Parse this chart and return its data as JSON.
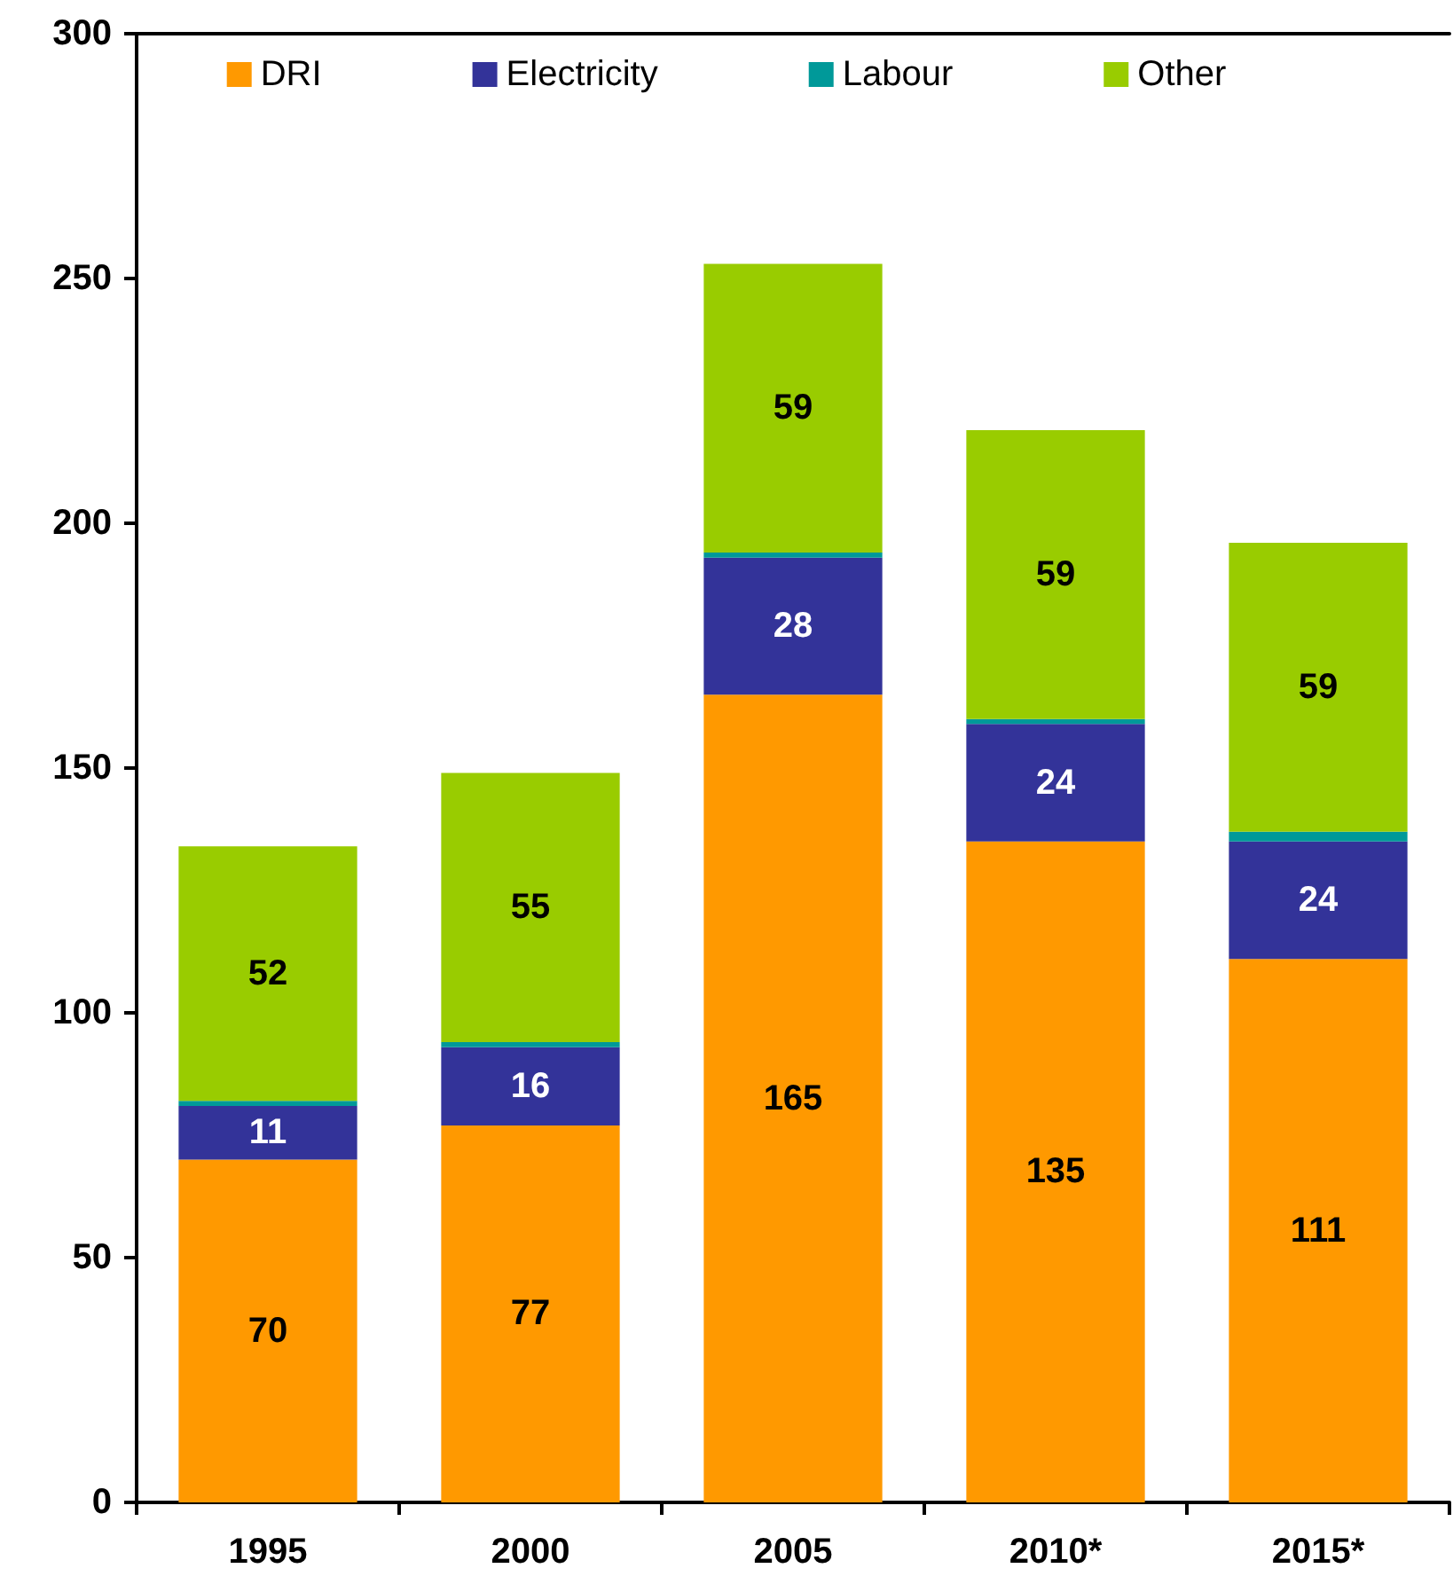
{
  "chart_data": {
    "type": "bar",
    "stacked": true,
    "categories": [
      "1995",
      "2000",
      "2005",
      "2010*",
      "2015*"
    ],
    "series": [
      {
        "name": "DRI",
        "color": "#ff9900",
        "values": [
          70,
          77,
          165,
          135,
          111
        ],
        "value_labels": [
          "70",
          "77",
          "165",
          "135",
          "111"
        ]
      },
      {
        "name": "Electricity",
        "color": "#333399",
        "values": [
          11,
          16,
          28,
          24,
          24
        ],
        "value_labels": [
          "11",
          "16",
          "28",
          "24",
          "24"
        ]
      },
      {
        "name": "Labour",
        "color": "#009999",
        "values": [
          1,
          1,
          1,
          1,
          2
        ]
      },
      {
        "name": "Other",
        "color": "#99cc00",
        "values": [
          52,
          55,
          59,
          59,
          59
        ],
        "value_labels": [
          "52",
          "55",
          "59",
          "59",
          "59"
        ]
      }
    ],
    "ylim": [
      0,
      300
    ],
    "yticks": [
      0,
      50,
      100,
      150,
      200,
      250,
      300
    ],
    "grid": false,
    "legend": "top"
  }
}
